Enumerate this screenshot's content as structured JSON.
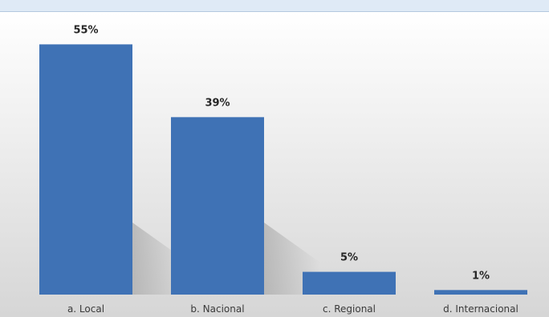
{
  "chart_data": {
    "type": "bar",
    "title": "",
    "xlabel": "",
    "ylabel": "",
    "categories": [
      "a. Local",
      "b. Nacional",
      "c. Regional",
      "d. Internacional"
    ],
    "values": [
      55,
      39,
      5,
      1
    ],
    "value_labels": [
      "55%",
      "39%",
      "5%",
      "1%"
    ],
    "ylim": [
      0,
      60
    ],
    "grid": false,
    "legend": "none",
    "colors": {
      "bar": "#3f72b5",
      "bar_highlight": "#4e82c4",
      "background_top": "#ffffff",
      "background_bottom": "#d9d9d9",
      "header_strip": "#dfeaf6"
    }
  }
}
